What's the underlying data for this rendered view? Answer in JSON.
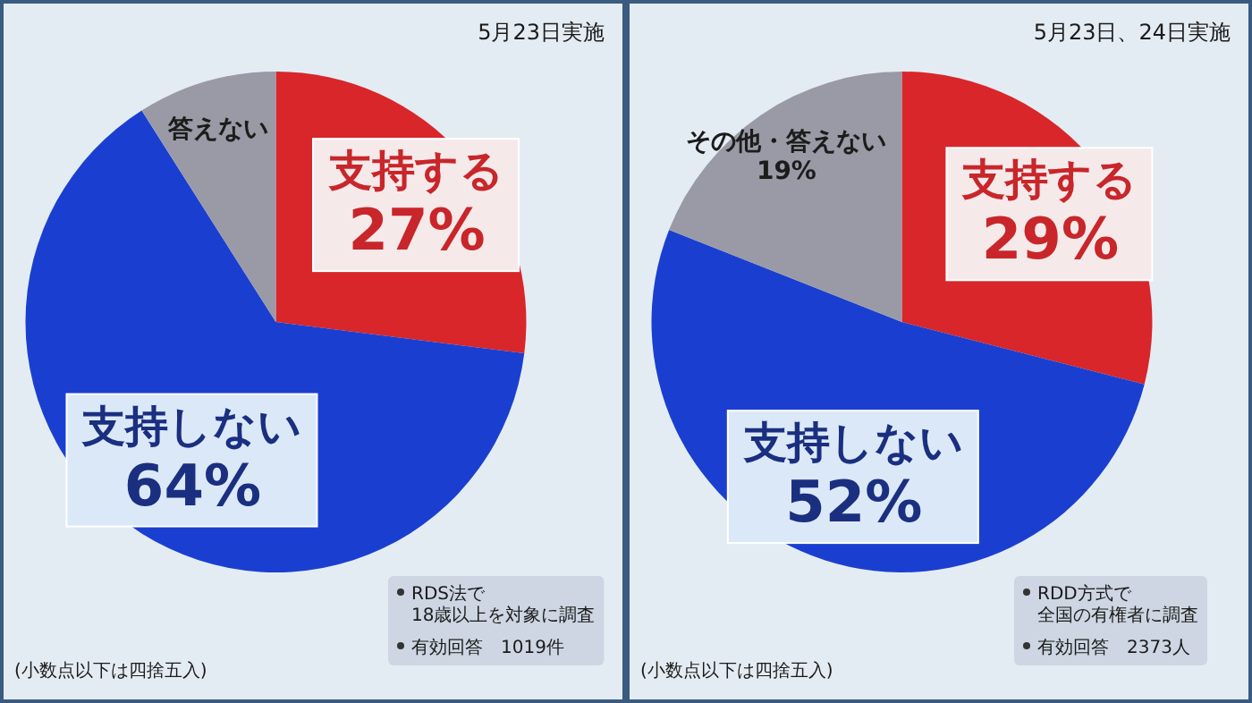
{
  "chart_data": [
    {
      "type": "pie",
      "categories": [
        "支持する",
        "支持しない",
        "答えない"
      ],
      "values": [
        27,
        64,
        9
      ],
      "colors": [
        "#d8262a",
        "#1a3fd0",
        "#9a9aa6"
      ],
      "value_labels": [
        "27%",
        "64%",
        null
      ],
      "annotations": [
        "5月23日実施",
        "RDS法で",
        "18歳以上を対象に調査",
        "有効回答　1019件",
        "(小数点以下は四捨五入)"
      ]
    },
    {
      "type": "pie",
      "categories": [
        "支持する",
        "支持しない",
        "その他・答えない"
      ],
      "values": [
        29,
        52,
        19
      ],
      "colors": [
        "#d8262a",
        "#1a3fd0",
        "#9a9aa6"
      ],
      "value_labels": [
        "29%",
        "52%",
        "19%"
      ],
      "annotations": [
        "5月23日、24日実施",
        "RDD方式で",
        "全国の有権者に調査",
        "有効回答　2373人",
        "(小数点以下は四捨五入)"
      ]
    }
  ]
}
